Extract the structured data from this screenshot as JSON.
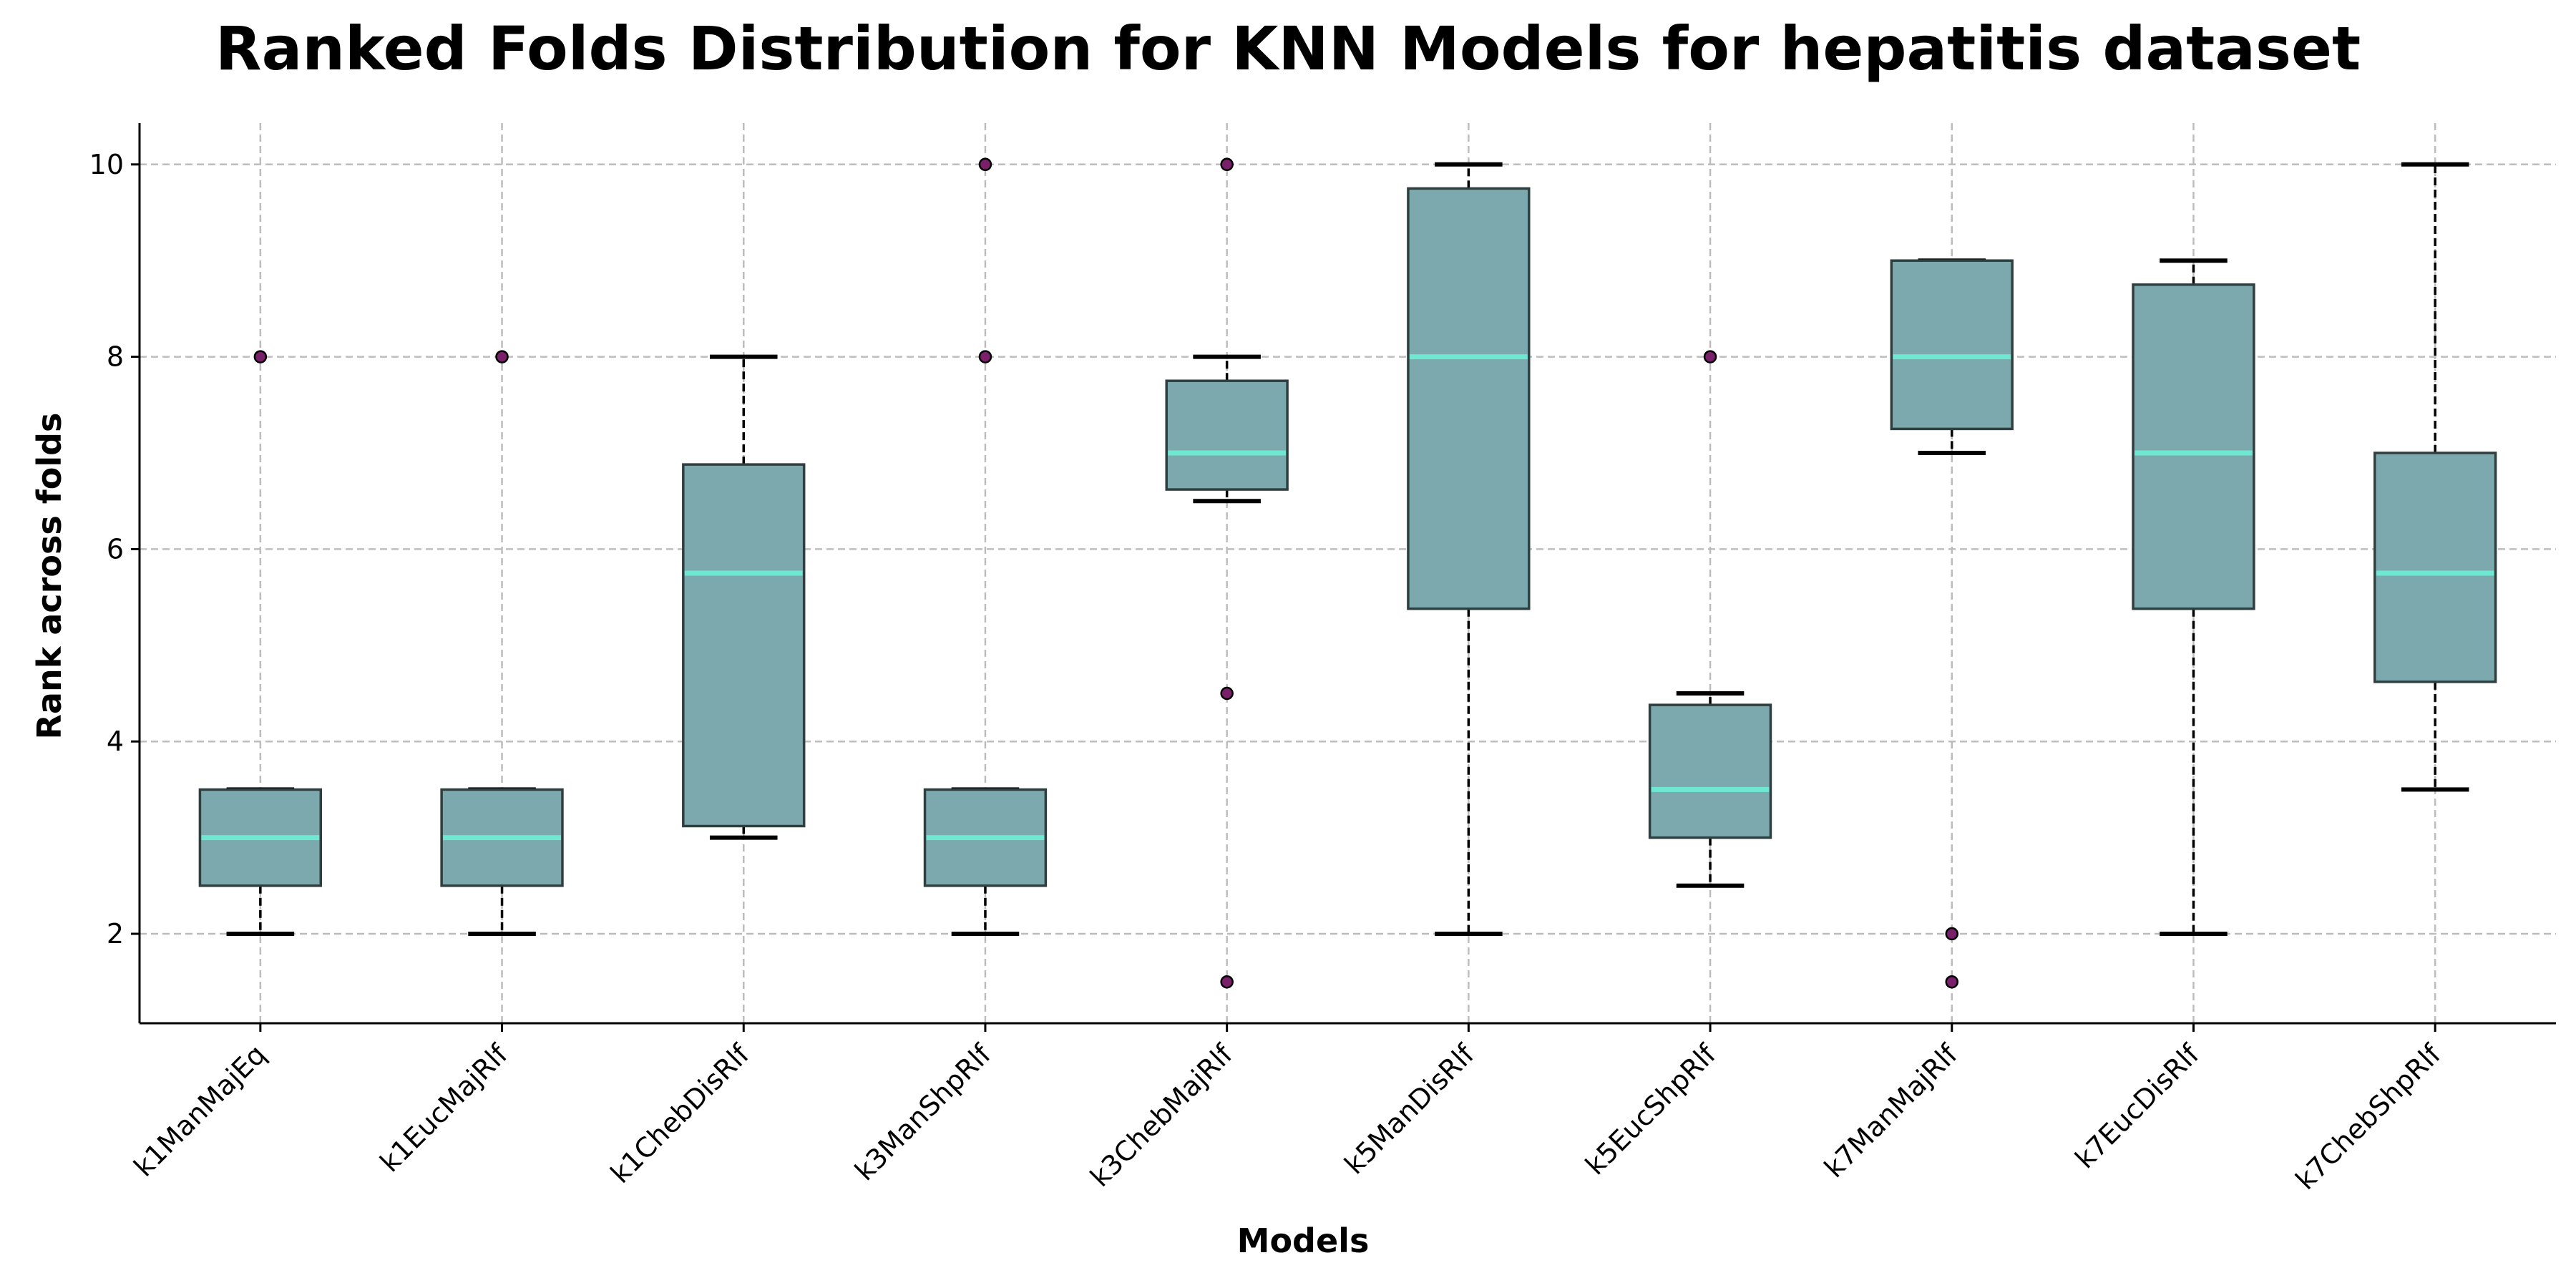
{
  "chart_data": {
    "type": "box",
    "title": "Ranked Folds Distribution for KNN Models for hepatitis dataset",
    "xlabel": "Models",
    "ylabel": "Rank across folds",
    "ylim": [
      1.07,
      10.43
    ],
    "yticks": [
      2,
      4,
      6,
      8,
      10
    ],
    "grid": true,
    "colors": {
      "box_fill": "#7ba9ae",
      "box_edge": "#2f3f40",
      "median": "#6fe8d2",
      "whisker": "#000000",
      "outlier_fill": "#7a1f6a",
      "grid": "#bdbdbd"
    },
    "categories": [
      "k1ManMajEq",
      "k1EucMajRlf",
      "k1ChebDisRlf",
      "k3ManShpRlf",
      "k3ChebMajRlf",
      "k5ManDisRlf",
      "k5EucShpRlf",
      "k7ManMajRlf",
      "k7EucDisRlf",
      "k7ChebShpRlf"
    ],
    "boxes": [
      {
        "whislo": 2.0,
        "q1": 2.5,
        "median": 3.0,
        "q3": 3.5,
        "whishi": 3.5,
        "fliers": [
          8
        ]
      },
      {
        "whislo": 2.0,
        "q1": 2.5,
        "median": 3.0,
        "q3": 3.5,
        "whishi": 3.5,
        "fliers": [
          8
        ]
      },
      {
        "whislo": 3.0,
        "q1": 3.12,
        "median": 5.75,
        "q3": 6.88,
        "whishi": 8.0,
        "fliers": []
      },
      {
        "whislo": 2.0,
        "q1": 2.5,
        "median": 3.0,
        "q3": 3.5,
        "whishi": 3.5,
        "fliers": [
          8,
          10
        ]
      },
      {
        "whislo": 6.5,
        "q1": 6.62,
        "median": 7.0,
        "q3": 7.75,
        "whishi": 8.0,
        "fliers": [
          10,
          4.5,
          1.5
        ]
      },
      {
        "whislo": 2.0,
        "q1": 5.38,
        "median": 8.0,
        "q3": 9.75,
        "whishi": 10.0,
        "fliers": []
      },
      {
        "whislo": 2.5,
        "q1": 3.0,
        "median": 3.5,
        "q3": 4.38,
        "whishi": 4.5,
        "fliers": [
          8
        ]
      },
      {
        "whislo": 7.0,
        "q1": 7.25,
        "median": 8.0,
        "q3": 9.0,
        "whishi": 9.0,
        "fliers": [
          2,
          1.5
        ]
      },
      {
        "whislo": 2.0,
        "q1": 5.38,
        "median": 7.0,
        "q3": 8.75,
        "whishi": 9.0,
        "fliers": []
      },
      {
        "whislo": 3.5,
        "q1": 4.62,
        "median": 5.75,
        "q3": 7.0,
        "whishi": 10.0,
        "fliers": []
      }
    ]
  }
}
